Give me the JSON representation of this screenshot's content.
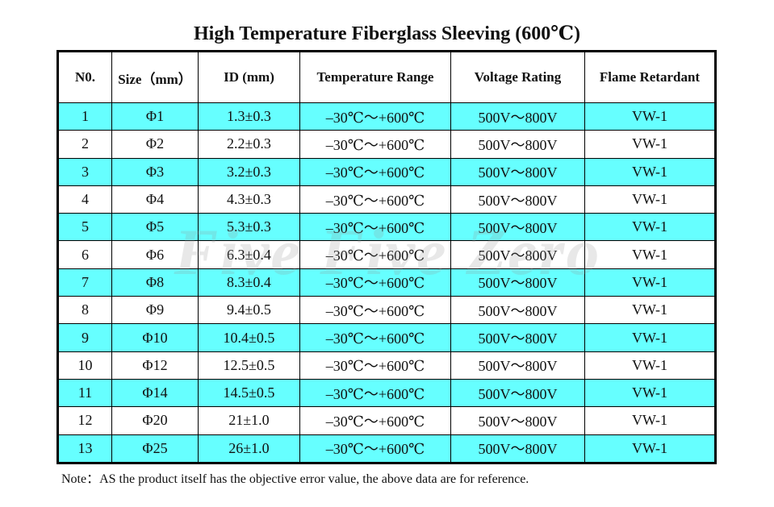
{
  "title": "High Temperature Fiberglass Sleeving (600℃)",
  "watermark": "Five Five Zero",
  "colors": {
    "highlight_row": "#66ffff",
    "plain_row": "#ffffff",
    "border": "#000000"
  },
  "table": {
    "headers": [
      "N0.",
      "Size（mm）",
      "ID (mm)",
      "Temperature Range",
      "Voltage Rating",
      "Flame Retardant"
    ],
    "rows": [
      [
        "1",
        "Φ1",
        "1.3±0.3",
        "–30℃～+600℃",
        "500V～800V",
        "VW-1"
      ],
      [
        "2",
        "Φ2",
        "2.2±0.3",
        "–30℃～+600℃",
        "500V～800V",
        "VW-1"
      ],
      [
        "3",
        "Φ3",
        "3.2±0.3",
        "–30℃～+600℃",
        "500V～800V",
        "VW-1"
      ],
      [
        "4",
        "Φ4",
        "4.3±0.3",
        "–30℃～+600℃",
        "500V～800V",
        "VW-1"
      ],
      [
        "5",
        "Φ5",
        "5.3±0.3",
        "–30℃～+600℃",
        "500V～800V",
        "VW-1"
      ],
      [
        "6",
        "Φ6",
        "6.3±0.4",
        "–30℃～+600℃",
        "500V～800V",
        "VW-1"
      ],
      [
        "7",
        "Φ8",
        "8.3±0.4",
        "–30℃～+600℃",
        "500V～800V",
        "VW-1"
      ],
      [
        "8",
        "Φ9",
        "9.4±0.5",
        "–30℃～+600℃",
        "500V～800V",
        "VW-1"
      ],
      [
        "9",
        "Φ10",
        "10.4±0.5",
        "–30℃～+600℃",
        "500V～800V",
        "VW-1"
      ],
      [
        "10",
        "Φ12",
        "12.5±0.5",
        "–30℃～+600℃",
        "500V～800V",
        "VW-1"
      ],
      [
        "11",
        "Φ14",
        "14.5±0.5",
        "–30℃～+600℃",
        "500V～800V",
        "VW-1"
      ],
      [
        "12",
        "Φ20",
        "21±1.0",
        "–30℃～+600℃",
        "500V～800V",
        "VW-1"
      ],
      [
        "13",
        "Φ25",
        "26±1.0",
        "–30℃～+600℃",
        "500V～800V",
        "VW-1"
      ]
    ]
  },
  "note": "Note：AS the product itself has the objective error value, the above data are for reference."
}
